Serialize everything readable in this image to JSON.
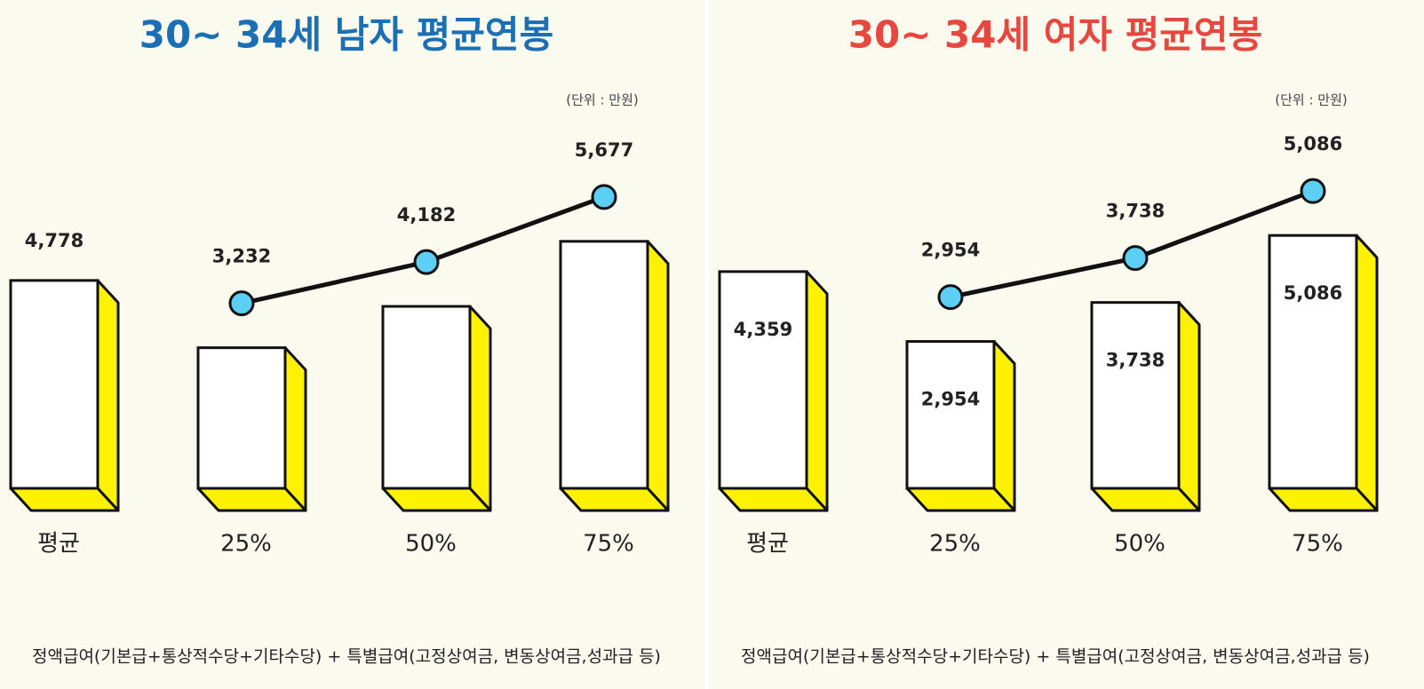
{
  "chart_data": [
    {
      "type": "bar",
      "title": "30~ 34세 남자 평균연봉",
      "title_color": "#1a6fb5",
      "unit": "(단위 : 만원)",
      "categories": [
        "평균",
        "25%",
        "50%",
        "75%"
      ],
      "values": [
        4778,
        3232,
        4182,
        5677
      ],
      "value_labels": [
        "4,778",
        null,
        null,
        null
      ],
      "line_values": [
        null,
        3232,
        4182,
        5677
      ],
      "line_value_labels": [
        null,
        "3,232",
        "4,182",
        "5,677"
      ],
      "color": "#ffffff",
      "side_color": "#fff200",
      "line_color": "#111111",
      "marker_color": "#5ccff5",
      "note": "정액급여(기본급+통상적수당+기타수당) + 특별급여(고정상여금, 변동상여금,성과급 등)"
    },
    {
      "type": "bar",
      "title": "30~ 34세 여자 평균연봉",
      "title_color": "#e8473f",
      "unit": "(단위 : 만원)",
      "categories": [
        "평균",
        "25%",
        "50%",
        "75%"
      ],
      "values": [
        4359,
        2954,
        3738,
        5086
      ],
      "value_labels": [
        "4,359",
        "2,954",
        "3,738",
        "5,086"
      ],
      "line_values": [
        null,
        2954,
        3738,
        5086
      ],
      "line_value_labels": [
        null,
        "2,954",
        "3,738",
        "5,086"
      ],
      "color": "#ffffff",
      "side_color": "#fff200",
      "line_color": "#111111",
      "marker_color": "#5ccff5",
      "note": "정액급여(기본급+통상적수당+기타수당) + 특별급여(고정상여금, 변동상여금,성과급 등)"
    }
  ]
}
